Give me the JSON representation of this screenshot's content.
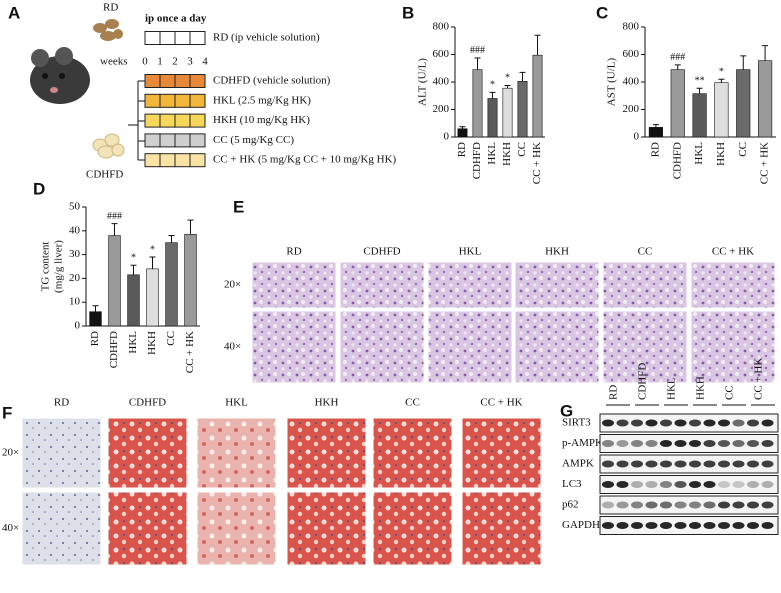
{
  "panel_a": {
    "label": "A",
    "diet_top": "RD",
    "schedule_title": "ip once a day",
    "rd_group": "RD (ip vehicle solution)",
    "weeks_label": "weeks",
    "weeks": [
      "0",
      "1",
      "2",
      "3",
      "4"
    ],
    "diet_bottom": "CDHFD",
    "groups": [
      {
        "label": "CDHFD (vehicle solution)",
        "color": "#e8893a"
      },
      {
        "label": "HKL (2.5 mg/Kg HK)",
        "color": "#f2b63a"
      },
      {
        "label": "HKH (10 mg/Kg HK)",
        "color": "#f6d75a"
      },
      {
        "label": "CC (5 mg/Kg CC)",
        "color": "#cfcfcf"
      },
      {
        "label": "CC + HK (5 mg/Kg CC + 10 mg/Kg HK)",
        "color": "#f8e2a4"
      }
    ]
  },
  "chart_data": [
    {
      "type": "bar",
      "panel_label": "B",
      "ylabel": "ALT (U/L)",
      "categories": [
        "RD",
        "CDHFD",
        "HKL",
        "HKH",
        "CC",
        "CC + HK"
      ],
      "values": [
        60,
        490,
        280,
        355,
        405,
        595
      ],
      "errors": [
        15,
        85,
        45,
        20,
        65,
        145
      ],
      "colors": [
        "#111111",
        "#9a9a9a",
        "#5a5a5a",
        "#dedede",
        "#6a6a6a",
        "#9a9a9a"
      ],
      "annotations": [
        null,
        "###",
        "*",
        "*",
        null,
        null
      ],
      "ylim": [
        0,
        800
      ],
      "yticks": [
        0,
        200,
        400,
        600,
        800
      ]
    },
    {
      "type": "bar",
      "panel_label": "C",
      "ylabel": "AST (U/L)",
      "categories": [
        "RD",
        "CDHFD",
        "HKL",
        "HKH",
        "CC",
        "CC + HK"
      ],
      "values": [
        70,
        490,
        315,
        395,
        490,
        555
      ],
      "errors": [
        20,
        35,
        40,
        25,
        100,
        110
      ],
      "colors": [
        "#111111",
        "#9a9a9a",
        "#5a5a5a",
        "#dedede",
        "#6a6a6a",
        "#9a9a9a"
      ],
      "annotations": [
        null,
        "###",
        "**",
        "*",
        null,
        null
      ],
      "ylim": [
        0,
        800
      ],
      "yticks": [
        0,
        200,
        400,
        600,
        800
      ]
    },
    {
      "type": "bar",
      "panel_label": "D",
      "ylabel": [
        "TG content",
        "(mg/g liver)"
      ],
      "categories": [
        "RD",
        "CDHFD",
        "HKL",
        "HKH",
        "CC",
        "CC + HK"
      ],
      "values": [
        6,
        38,
        21.5,
        24,
        35,
        38.5
      ],
      "errors": [
        2.5,
        5,
        4,
        5,
        3,
        6
      ],
      "colors": [
        "#111111",
        "#9a9a9a",
        "#5a5a5a",
        "#dedede",
        "#6a6a6a",
        "#9a9a9a"
      ],
      "annotations": [
        null,
        "###",
        "*",
        "*",
        null,
        null
      ],
      "ylim": [
        0,
        50
      ],
      "yticks": [
        0,
        10,
        20,
        30,
        40,
        50
      ]
    }
  ],
  "panel_e": {
    "label": "E",
    "columns": [
      "RD",
      "CDHFD",
      "HKL",
      "HKH",
      "CC",
      "CC + HK"
    ],
    "rows": [
      "20×",
      "40×"
    ]
  },
  "panel_f": {
    "label": "F",
    "columns": [
      "RD",
      "CDHFD",
      "HKL",
      "HKH",
      "CC",
      "CC + HK"
    ],
    "rows": [
      "20×",
      "40×"
    ]
  },
  "panel_g": {
    "label": "G",
    "lanes": [
      "RD",
      "CDHFD",
      "HKL",
      "HKH",
      "CC",
      "CC + HK"
    ],
    "proteins": [
      "SIRT3",
      "p-AMPK",
      "AMPK",
      "LC3",
      "p62",
      "GAPDH"
    ]
  }
}
